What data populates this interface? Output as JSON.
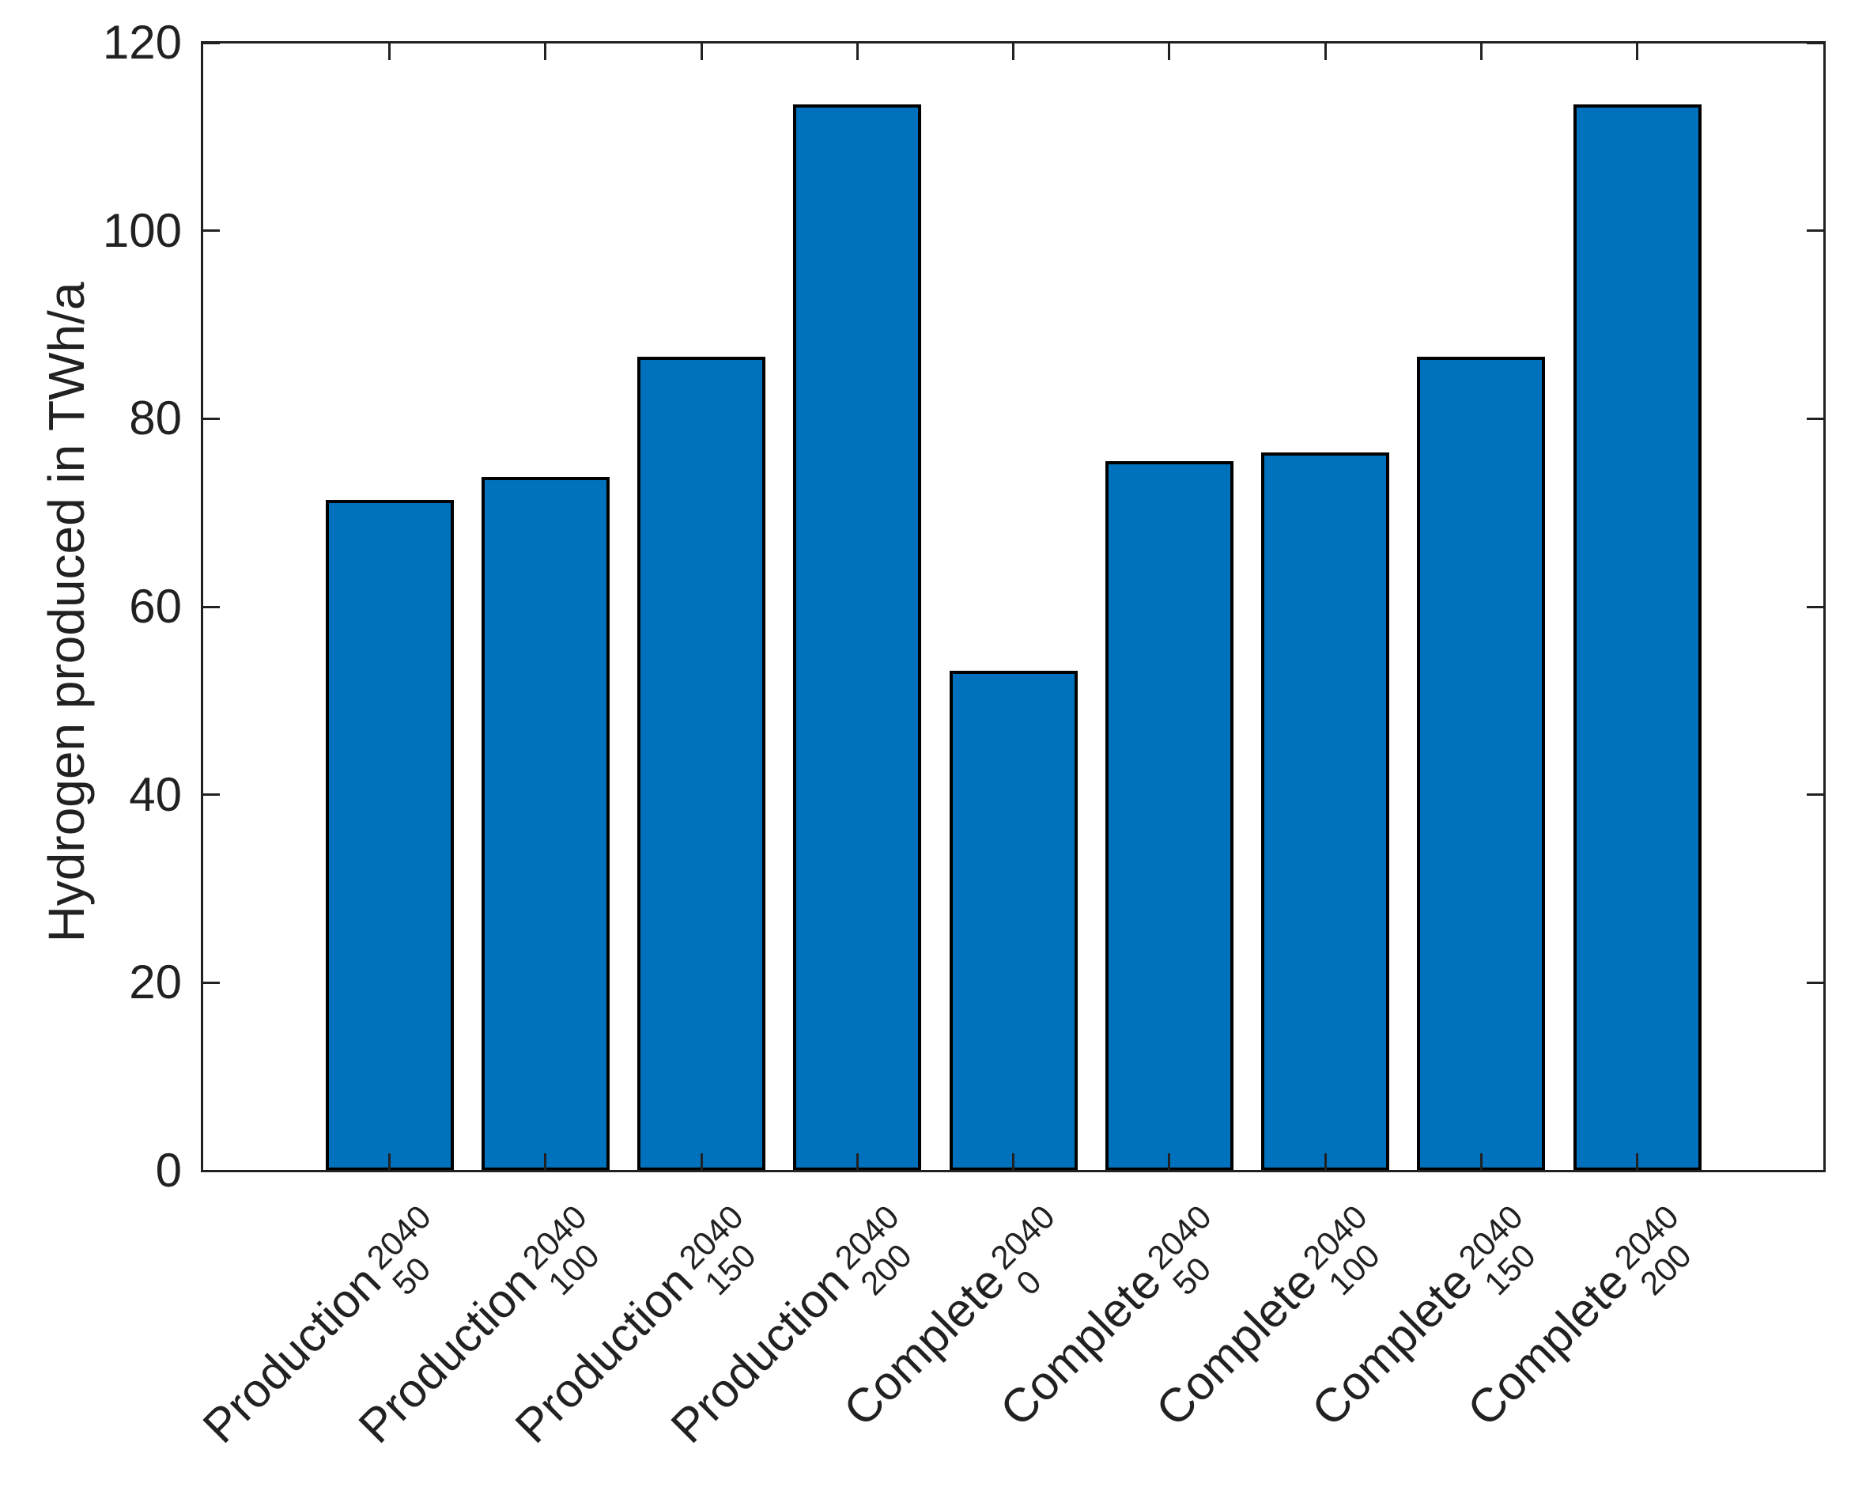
{
  "figure": {
    "background": "#ffffff"
  },
  "chart_data": {
    "type": "bar",
    "title": "",
    "xlabel": "",
    "ylabel": "Hydrogen produced in TWh/a",
    "categories": [
      "Production^{2040}_{50}",
      "Production^{2040}_{100}",
      "Production^{2040}_{150}",
      "Production^{2040}_{200}",
      "Complete^{2040}_{0}",
      "Complete^{2040}_{50}",
      "Complete^{2040}_{100}",
      "Complete^{2040}_{150}",
      "Complete^{2040}_{200}"
    ],
    "categories_rich": [
      {
        "base": "Production",
        "sup": "2040",
        "sub": "50"
      },
      {
        "base": "Production",
        "sup": "2040",
        "sub": "100"
      },
      {
        "base": "Production",
        "sup": "2040",
        "sub": "150"
      },
      {
        "base": "Production",
        "sup": "2040",
        "sub": "200"
      },
      {
        "base": "Complete",
        "sup": "2040",
        "sub": "0"
      },
      {
        "base": "Complete",
        "sup": "2040",
        "sub": "50"
      },
      {
        "base": "Complete",
        "sup": "2040",
        "sub": "100"
      },
      {
        "base": "Complete",
        "sup": "2040",
        "sub": "150"
      },
      {
        "base": "Complete",
        "sup": "2040",
        "sub": "200"
      }
    ],
    "values": [
      71.4,
      73.8,
      86.6,
      113.4,
      53.2,
      75.5,
      76.4,
      86.6,
      113.4
    ],
    "ylim": [
      0,
      120
    ],
    "yticks": [
      0,
      20,
      40,
      60,
      80,
      100,
      120
    ],
    "x_tick_label_rotation_deg": 45,
    "grid": false,
    "legend": null,
    "bar_color": "#0072BD",
    "bar_edge_color": "#000000",
    "axis_color": "#212121",
    "text_color": "#212121"
  }
}
